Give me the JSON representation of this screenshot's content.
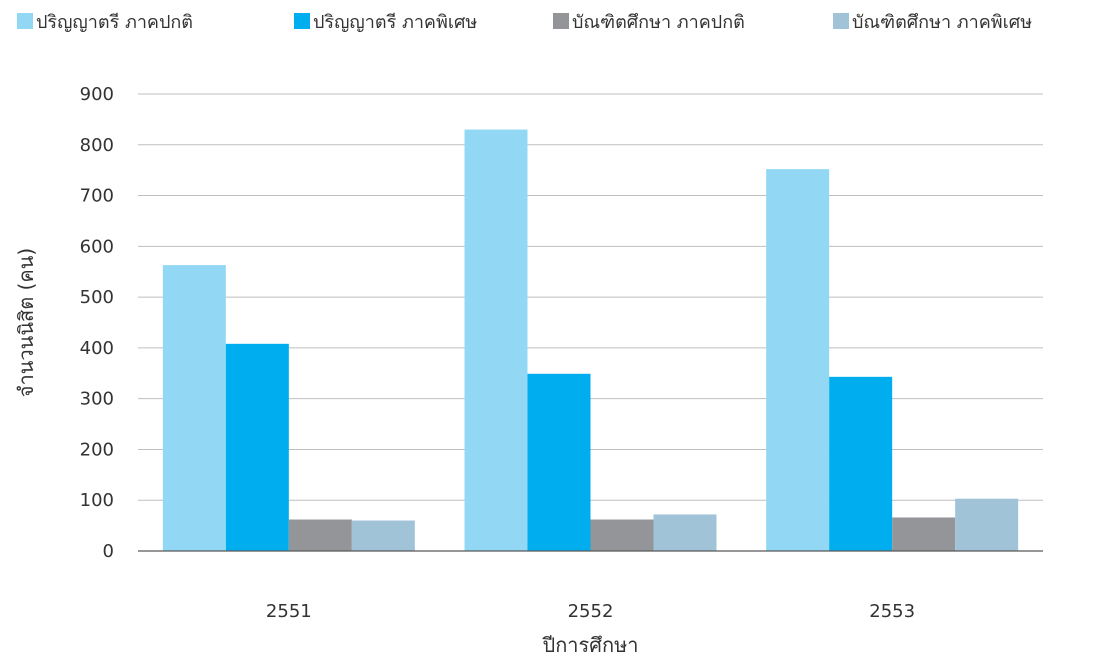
{
  "chart_data": {
    "type": "bar",
    "categories": [
      "2551",
      "2552",
      "2553"
    ],
    "series": [
      {
        "name": "ปริญญาตรี ภาคปกติ",
        "color": "#92d8f5",
        "values": [
          563,
          830,
          752
        ]
      },
      {
        "name": "ปริญญาตรี ภาคพิเศษ",
        "color": "#00aeef",
        "values": [
          408,
          349,
          343
        ]
      },
      {
        "name": "บัณฑิตศึกษา ภาคปกติ",
        "color": "#939598",
        "values": [
          62,
          62,
          66
        ]
      },
      {
        "name": "บัณฑิตศึกษา ภาคพิเศษ",
        "color": "#a0c3d7",
        "values": [
          60,
          72,
          103
        ]
      }
    ],
    "xlabel": "ปีการศึกษา",
    "ylabel": "จำนวนนิสิต (คน)",
    "ylim": [
      0,
      900
    ],
    "yticks": [
      "0",
      "100",
      "200",
      "300",
      "400",
      "500",
      "600",
      "700",
      "800",
      "900"
    ],
    "grid": true,
    "legend_position": "top"
  }
}
